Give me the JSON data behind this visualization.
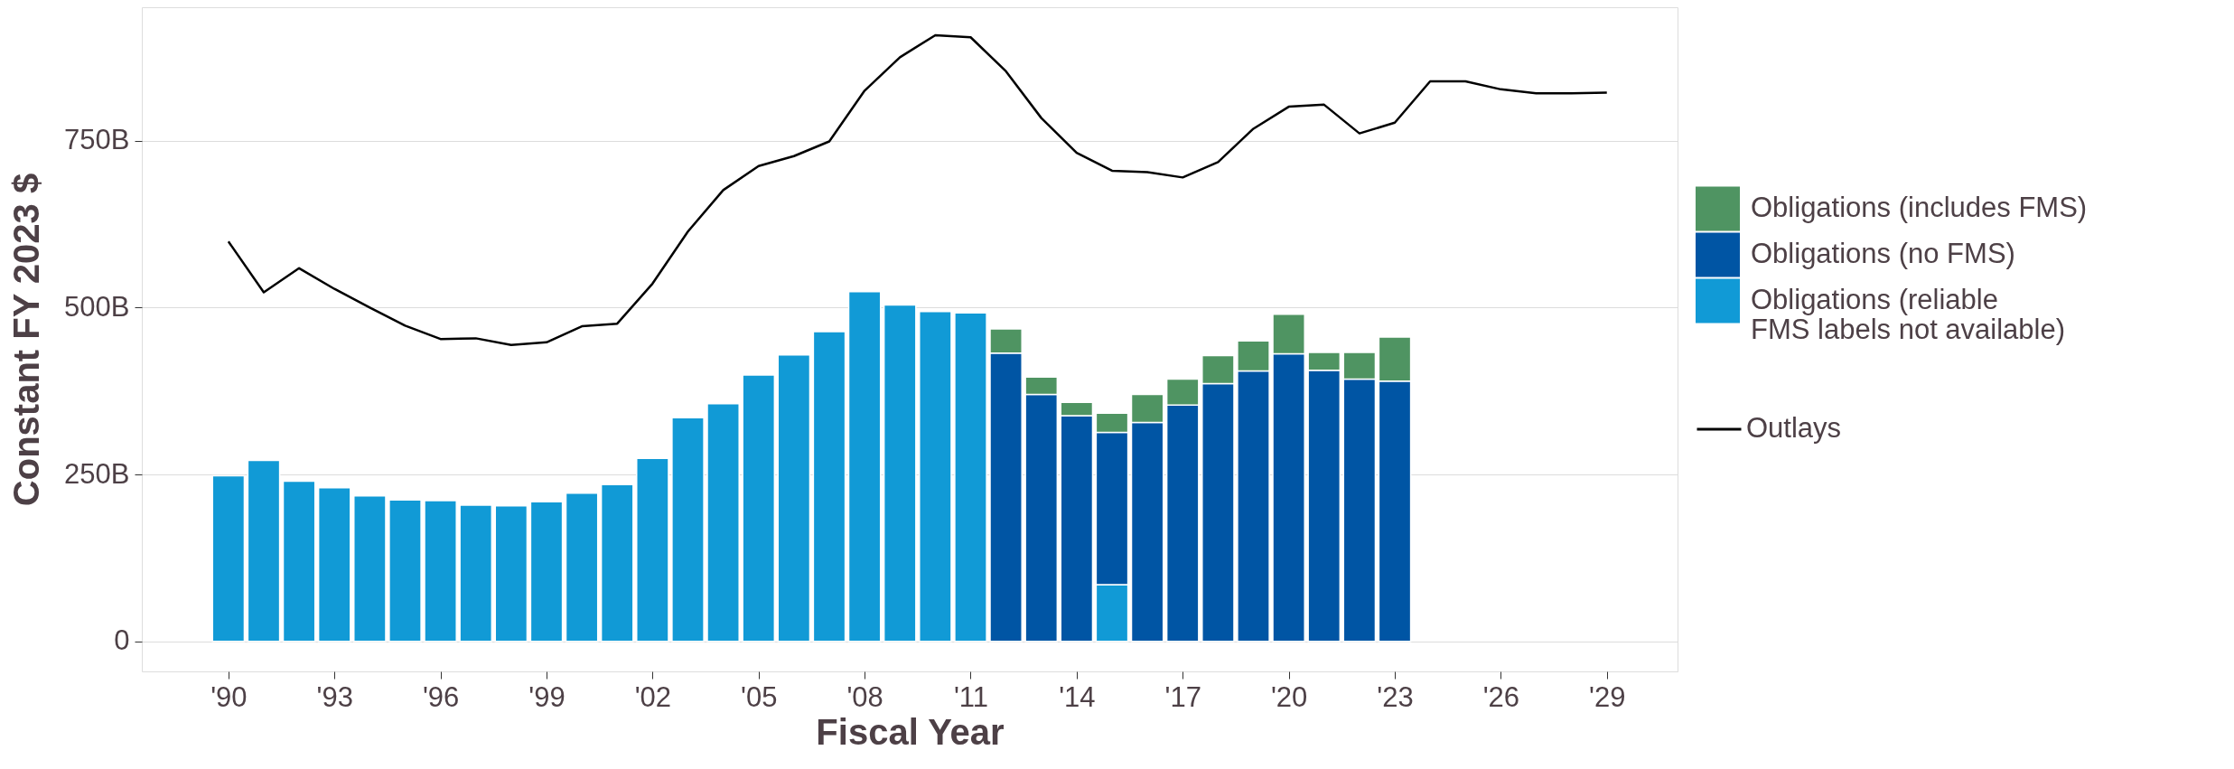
{
  "chart_data": {
    "type": "bar",
    "stacked": true,
    "xlabel": "Fiscal Year",
    "ylabel": "Constant FY 2023 $",
    "xlim": [
      1987.55,
      2031
    ],
    "xticks": [
      {
        "value": 1990,
        "label": "'90"
      },
      {
        "value": 1993,
        "label": "'93"
      },
      {
        "value": 1996,
        "label": "'96"
      },
      {
        "value": 1999,
        "label": "'99"
      },
      {
        "value": 2002,
        "label": "'02"
      },
      {
        "value": 2005,
        "label": "'05"
      },
      {
        "value": 2008,
        "label": "'08"
      },
      {
        "value": 2011,
        "label": "'11"
      },
      {
        "value": 2014,
        "label": "'14"
      },
      {
        "value": 2017,
        "label": "'17"
      },
      {
        "value": 2020,
        "label": "'20"
      },
      {
        "value": 2023,
        "label": "'23"
      },
      {
        "value": 2026,
        "label": "'26"
      },
      {
        "value": 2029,
        "label": "'29"
      }
    ],
    "ylim": [
      -45,
      950
    ],
    "yticks": [
      0,
      {
        "value": 250,
        "label": "250B"
      },
      {
        "value": 500,
        "label": "500B"
      },
      {
        "value": 750,
        "label": "750B"
      }
    ],
    "grid": "y",
    "legend": "right",
    "x": [
      1990,
      1991,
      1992,
      1993,
      1994,
      1995,
      1996,
      1997,
      1998,
      1999,
      2000,
      2001,
      2002,
      2003,
      2004,
      2005,
      2006,
      2007,
      2008,
      2009,
      2010,
      2011,
      2012,
      2013,
      2014,
      2015,
      2016,
      2017,
      2018,
      2019,
      2020,
      2021,
      2022,
      2023
    ],
    "series": [
      {
        "name": "Obligations (reliable FMS labels not available)",
        "color": "#119ad6",
        "values": [
          248,
          271,
          240,
          230,
          218,
          212,
          211,
          204,
          203,
          209,
          222,
          235,
          274,
          335,
          356,
          399,
          429,
          464,
          524,
          504,
          494,
          492,
          null,
          null,
          null,
          85,
          null,
          null,
          null,
          null,
          null,
          null,
          null,
          null
        ]
      },
      {
        "name": "Obligations (no FMS)",
        "color": "#0055a4",
        "values": [
          null,
          null,
          null,
          null,
          null,
          null,
          null,
          null,
          null,
          null,
          null,
          null,
          null,
          null,
          null,
          null,
          null,
          null,
          null,
          null,
          null,
          null,
          432,
          370,
          338,
          228,
          328,
          354,
          386,
          405,
          431,
          406,
          393,
          390
        ]
      },
      {
        "name": "Obligations (includes FMS)",
        "color": "#4f9462",
        "values": [
          null,
          null,
          null,
          null,
          null,
          null,
          null,
          null,
          null,
          null,
          null,
          null,
          null,
          null,
          null,
          null,
          null,
          null,
          null,
          null,
          null,
          null,
          36,
          26,
          20,
          29,
          42,
          39,
          42,
          45,
          59,
          27,
          40,
          66
        ]
      },
      {
        "name": "Outlays",
        "type": "line",
        "color": "#000000",
        "x": [
          1990,
          1991,
          1992,
          1993,
          1994,
          1995,
          1996,
          1997,
          1998,
          1999,
          2000,
          2001,
          2002,
          2003,
          2004,
          2005,
          2006,
          2007,
          2008,
          2009,
          2010,
          2011,
          2012,
          2013,
          2014,
          2015,
          2016,
          2017,
          2018,
          2019,
          2020,
          2021,
          2022,
          2023,
          2024,
          2025,
          2026,
          2027,
          2028,
          2029
        ],
        "values": [
          599,
          523,
          559,
          528,
          500,
          473,
          453,
          454,
          444,
          448,
          472,
          476,
          536,
          614,
          676,
          712,
          727,
          749,
          825,
          875,
          908,
          905,
          854,
          784,
          732,
          705,
          703,
          695,
          718,
          768,
          801,
          804,
          761,
          777,
          839,
          839,
          827,
          821,
          821,
          822
        ]
      }
    ]
  }
}
